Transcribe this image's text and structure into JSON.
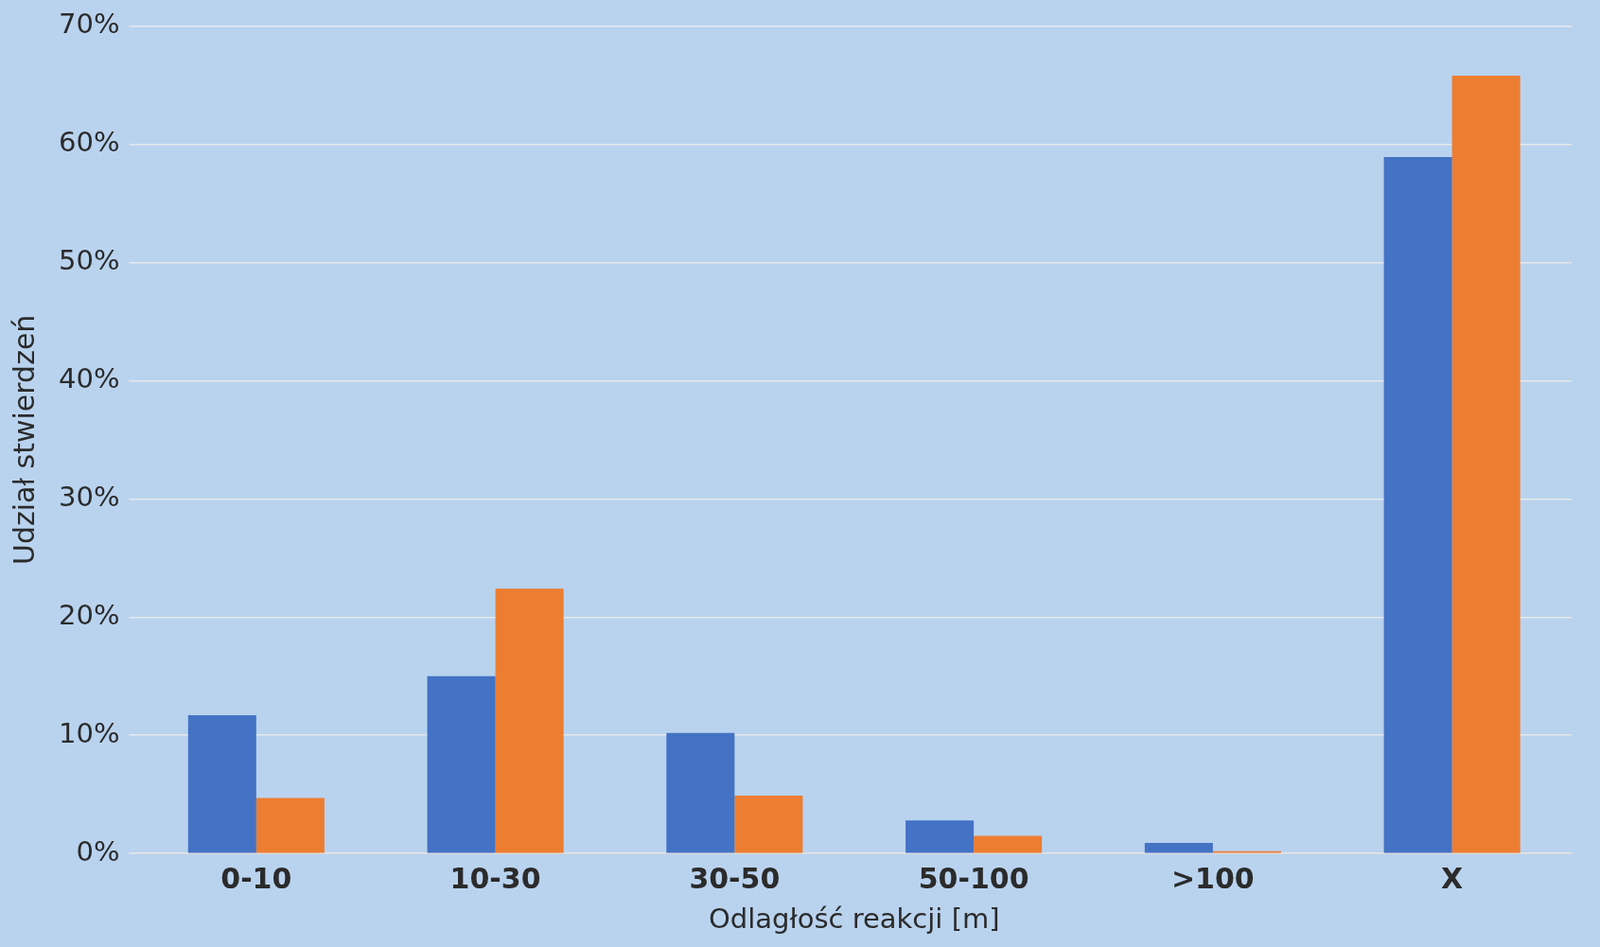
{
  "chart_data": {
    "type": "bar",
    "x_label": "Odlagłość reakcji [m]",
    "y_label": "Udział stwierdzeń",
    "categories": [
      "0-10",
      "10-30",
      "30-50",
      "50-100",
      ">100",
      "X"
    ],
    "series": [
      {
        "color": "#4472c4",
        "values": [
          11.7,
          15.0,
          10.2,
          2.8,
          0.9,
          58.9
        ]
      },
      {
        "color": "#ed7d31",
        "values": [
          4.7,
          22.4,
          4.9,
          1.5,
          0.2,
          65.8
        ]
      }
    ],
    "ylim": [
      0,
      70
    ],
    "yticks": [
      {
        "value": 0,
        "label": "0%"
      },
      {
        "value": 10,
        "label": "10%"
      },
      {
        "value": 20,
        "label": "20%"
      },
      {
        "value": 30,
        "label": "30%"
      },
      {
        "value": 40,
        "label": "40%"
      },
      {
        "value": 50,
        "label": "50%"
      },
      {
        "value": 60,
        "label": "60%"
      },
      {
        "value": 70,
        "label": "70%"
      }
    ],
    "grid": true
  }
}
